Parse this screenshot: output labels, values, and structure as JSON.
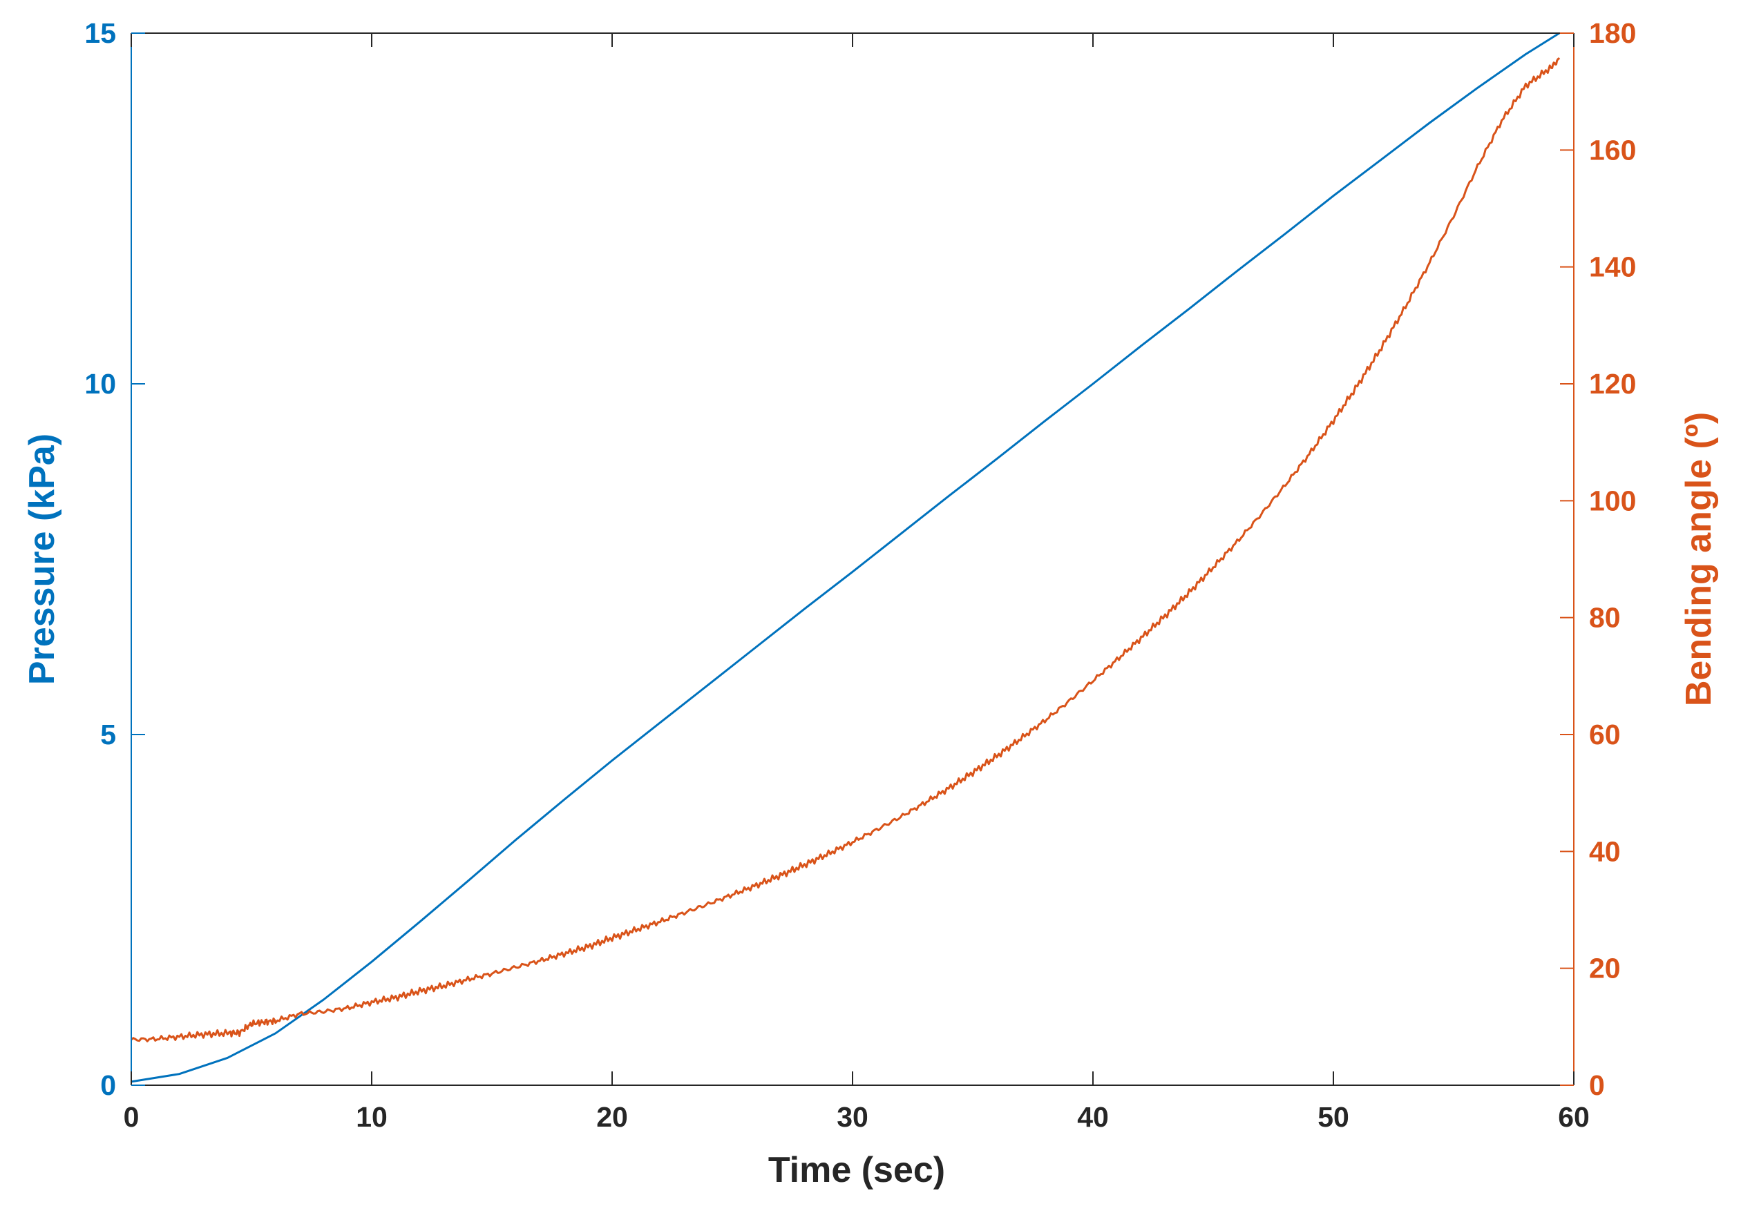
{
  "chart_data": {
    "type": "line",
    "xlabel": "Time (sec)",
    "ylabel_left": "Pressure (kPa)",
    "ylabel_right": "Bending angle (º)",
    "xlim": [
      0,
      60
    ],
    "ylim_left": [
      0,
      15
    ],
    "ylim_right": [
      0,
      180
    ],
    "xticks": [
      "0",
      "10",
      "20",
      "30",
      "40",
      "50",
      "60"
    ],
    "yticks_left": [
      "0",
      "5",
      "10",
      "15"
    ],
    "yticks_right": [
      "0",
      "20",
      "40",
      "60",
      "80",
      "100",
      "120",
      "140",
      "160",
      "180"
    ],
    "grid": false,
    "colors": {
      "left_axis": "#0072BD",
      "right_axis": "#D95319",
      "x_axis": "#262626"
    },
    "series": [
      {
        "axis": "left",
        "color": "#0072BD",
        "x": [
          0,
          2,
          4,
          6,
          8,
          10,
          12,
          14,
          16,
          18,
          20,
          22,
          24,
          26,
          28,
          30,
          32,
          34,
          36,
          38,
          40,
          42,
          44,
          46,
          48,
          50,
          52,
          54,
          56,
          58,
          59.4
        ],
        "y": [
          0.05,
          0.16,
          0.39,
          0.74,
          1.22,
          1.76,
          2.33,
          2.91,
          3.5,
          4.07,
          4.63,
          5.17,
          5.71,
          6.25,
          6.79,
          7.32,
          7.86,
          8.4,
          8.93,
          9.47,
          10.0,
          10.54,
          11.07,
          11.61,
          12.14,
          12.68,
          13.2,
          13.72,
          14.22,
          14.7,
          15.0
        ]
      },
      {
        "axis": "right",
        "color": "#D95319",
        "x": [
          0,
          1,
          2,
          3,
          4,
          4.5,
          5,
          5.5,
          6,
          7,
          8,
          9,
          10,
          11,
          12,
          13,
          14,
          15,
          16,
          17,
          18,
          19,
          20,
          21,
          22,
          23,
          24,
          25,
          26,
          27,
          28,
          29,
          30,
          31,
          32,
          33,
          34,
          35,
          36,
          37,
          38,
          39,
          40,
          41,
          42,
          43,
          44,
          45,
          46,
          47,
          48,
          49,
          50,
          51,
          52,
          53,
          54,
          55,
          56,
          57,
          58,
          59,
          59.4
        ],
        "y": [
          7.8,
          7.9,
          8.3,
          8.7,
          8.9,
          9.0,
          10.5,
          10.8,
          11.0,
          12.2,
          12.6,
          13.2,
          14.2,
          15.0,
          16.1,
          17.0,
          18.1,
          19.1,
          20.2,
          21.3,
          22.5,
          23.7,
          25.2,
          26.6,
          28.0,
          29.5,
          31.0,
          32.6,
          34.2,
          35.9,
          37.7,
          39.6,
          41.6,
          43.7,
          45.9,
          48.3,
          50.8,
          53.5,
          56.3,
          59.3,
          62.4,
          65.7,
          69.2,
          72.8,
          76.5,
          80.3,
          84.3,
          88.6,
          93.0,
          97.7,
          102.7,
          108.0,
          113.7,
          119.7,
          126.2,
          133.2,
          140.7,
          148.7,
          157.2,
          165.0,
          171.0,
          174.0,
          175.5
        ]
      }
    ]
  }
}
